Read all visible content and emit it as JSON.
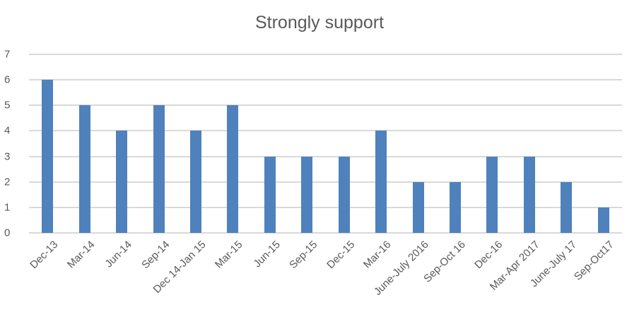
{
  "chart_data": {
    "type": "bar",
    "title": "Strongly support",
    "xlabel": "",
    "ylabel": "",
    "ylim": [
      0,
      7
    ],
    "yticks": [
      0,
      1,
      2,
      3,
      4,
      5,
      6,
      7
    ],
    "grid": true,
    "legend": null,
    "bar_color": "#4f81bd",
    "categories": [
      "Dec-13",
      "Mar-14",
      "Jun-14",
      "Sep-14",
      "Dec 14-Jan 15",
      "Mar-15",
      "Jun-15",
      "Sep-15",
      "Dec-15",
      "Mar-16",
      "June-July 2016",
      "Sep-Oct 16",
      "Dec-16",
      "Mar-Apr 2017",
      "June-July 17",
      "Sep-Oct17"
    ],
    "values": [
      6,
      5,
      4,
      5,
      4,
      5,
      3,
      3,
      3,
      4,
      2,
      2,
      3,
      3,
      2,
      1
    ]
  }
}
